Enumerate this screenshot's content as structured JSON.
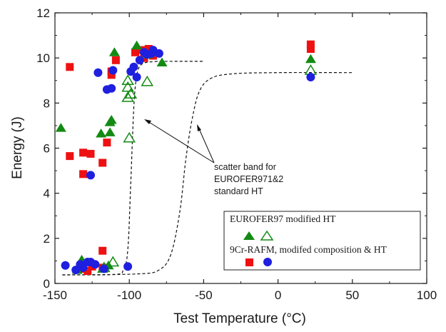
{
  "chart_data": {
    "type": "scatter",
    "title": "",
    "xlabel": "Test Temperature (°C)",
    "ylabel": "Energy (J)",
    "xlim": [
      -150,
      100
    ],
    "ylim": [
      0,
      12
    ],
    "xticks": [
      -150,
      -100,
      -50,
      0,
      50,
      100
    ],
    "yticks": [
      0,
      2,
      4,
      6,
      8,
      10,
      12
    ],
    "grid": false,
    "colors": {
      "red": "#ee1111",
      "green": "#138a13",
      "blue": "#1f1fe0"
    },
    "legend": {
      "placement": "bottom-right",
      "group1_label": "EUROFER97 modified HT",
      "group2_label": "9Cr-RAFM, modifed composition & HT"
    },
    "annotation": {
      "lines": [
        "scatter band for",
        "EUROFER971&2",
        "standard HT"
      ]
    },
    "scatter_band": [
      {
        "name": "",
        "style": "dashed",
        "x": [
          -145,
          -110,
          -104,
          -101,
          -99,
          -97,
          -95,
          -92,
          -85,
          -70,
          -50
        ],
        "y": [
          0.38,
          0.4,
          0.6,
          1.5,
          4.5,
          7.8,
          9.2,
          9.7,
          9.83,
          9.85,
          9.85
        ]
      },
      {
        "name": "",
        "style": "dashed",
        "x": [
          -145,
          -95,
          -80,
          -72,
          -66,
          -62,
          -58,
          -53,
          -45,
          -30,
          0,
          50
        ],
        "y": [
          0.38,
          0.42,
          0.6,
          1.3,
          3.2,
          5.5,
          7.2,
          8.5,
          9.1,
          9.3,
          9.35,
          9.35
        ]
      }
    ],
    "series": [
      {
        "name": "",
        "marker": "square",
        "color": "red",
        "filled": true,
        "x": [
          -140,
          -140,
          -131,
          -131,
          -126,
          -125,
          -118,
          -118,
          -115,
          -112,
          -109,
          -112,
          -96,
          -92,
          -90,
          -87,
          -84,
          22,
          22,
          -133,
          -128,
          -118,
          -125
        ],
        "y": [
          9.6,
          5.65,
          5.8,
          4.85,
          5.75,
          0.75,
          5.35,
          1.45,
          6.25,
          9.25,
          9.9,
          9.4,
          10.25,
          10.35,
          10.0,
          10.4,
          10.1,
          10.6,
          10.4,
          0.65,
          0.55,
          0.7,
          0.85
        ]
      },
      {
        "name": "",
        "marker": "triangle",
        "color": "green",
        "filled": true,
        "x": [
          -146,
          -132,
          -119,
          -118,
          -113,
          -112,
          -113,
          -110,
          -95,
          -88,
          -78,
          22,
          -135,
          -114
        ],
        "y": [
          6.9,
          1.05,
          6.65,
          0.65,
          7.15,
          7.25,
          6.7,
          10.25,
          10.55,
          10.15,
          9.8,
          9.95,
          0.6,
          0.8
        ]
      },
      {
        "name": "",
        "marker": "triangle",
        "color": "green",
        "filled": false,
        "x": [
          -101,
          -101,
          -101,
          -100,
          -99,
          -88,
          22,
          -111,
          -117
        ],
        "y": [
          9.0,
          8.7,
          8.25,
          6.45,
          8.4,
          8.95,
          9.45,
          0.95,
          0.7
        ]
      },
      {
        "name": "",
        "marker": "circle",
        "color": "blue",
        "filled": true,
        "x": [
          -143,
          -136,
          -131,
          -128,
          -126,
          -123,
          -121,
          -117,
          -115,
          -112,
          -111,
          -99,
          -97,
          -93,
          -90,
          -88,
          -85,
          -80,
          -84,
          -95,
          -101,
          22,
          -126,
          -133
        ],
        "y": [
          0.8,
          0.6,
          0.7,
          0.95,
          4.8,
          0.85,
          9.35,
          0.65,
          8.6,
          8.65,
          9.45,
          9.4,
          9.6,
          9.9,
          10.25,
          10.15,
          10.2,
          10.2,
          10.35,
          9.15,
          0.75,
          9.15,
          0.95,
          0.85
        ]
      }
    ]
  }
}
